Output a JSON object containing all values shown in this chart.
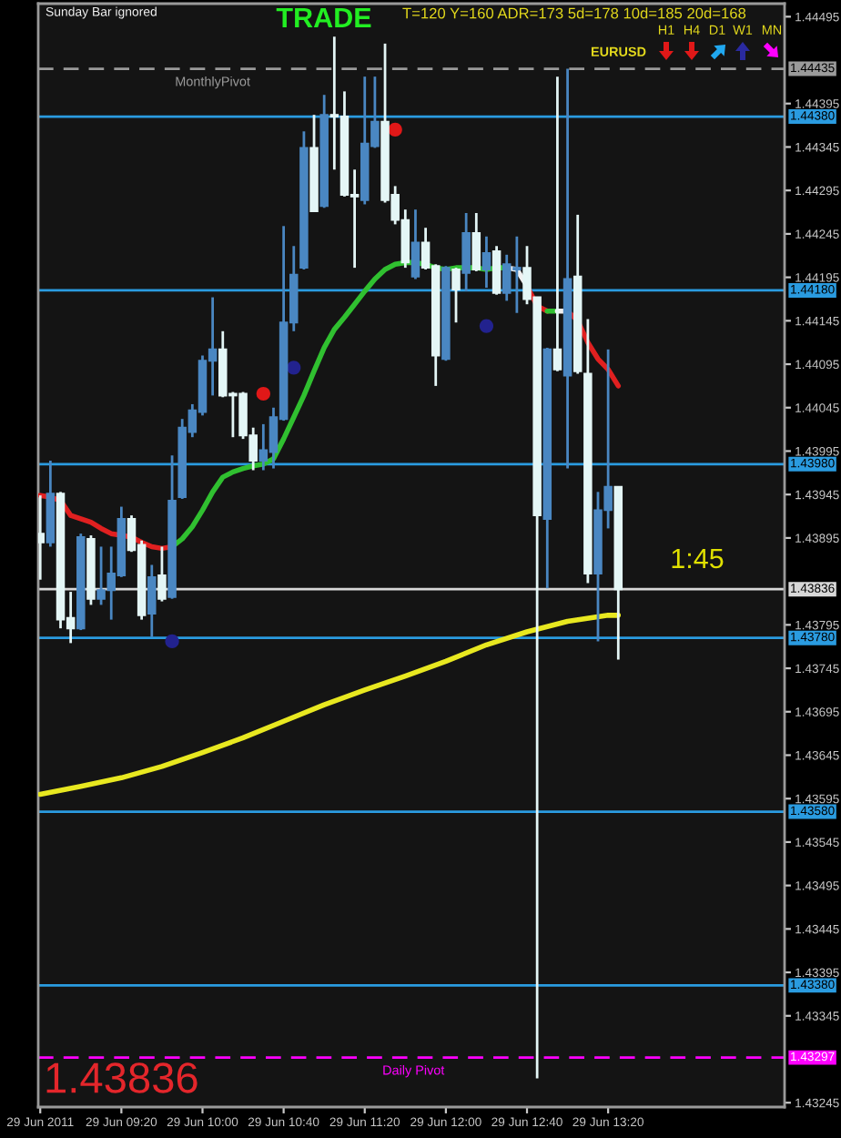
{
  "chart_data": {
    "type": "candlestick",
    "title": "TRADE",
    "x": [
      "2011-06-29T08:40",
      "2011-06-29T08:45",
      "2011-06-29T08:50",
      "2011-06-29T08:55",
      "2011-06-29T09:00",
      "2011-06-29T09:05",
      "2011-06-29T09:10",
      "2011-06-29T09:15",
      "2011-06-29T09:20",
      "2011-06-29T09:25",
      "2011-06-29T09:30",
      "2011-06-29T09:35",
      "2011-06-29T09:40",
      "2011-06-29T09:45",
      "2011-06-29T09:50",
      "2011-06-29T09:55",
      "2011-06-29T10:00",
      "2011-06-29T10:05",
      "2011-06-29T10:10",
      "2011-06-29T10:15",
      "2011-06-29T10:20",
      "2011-06-29T10:25",
      "2011-06-29T10:30",
      "2011-06-29T10:35",
      "2011-06-29T10:40",
      "2011-06-29T10:45",
      "2011-06-29T10:50",
      "2011-06-29T10:55",
      "2011-06-29T11:00",
      "2011-06-29T11:05",
      "2011-06-29T11:10",
      "2011-06-29T11:15",
      "2011-06-29T11:20",
      "2011-06-29T11:25",
      "2011-06-29T11:30",
      "2011-06-29T11:35",
      "2011-06-29T11:40",
      "2011-06-29T11:45",
      "2011-06-29T11:50",
      "2011-06-29T11:55",
      "2011-06-29T12:00",
      "2011-06-29T12:05",
      "2011-06-29T12:10",
      "2011-06-29T12:15",
      "2011-06-29T12:20",
      "2011-06-29T12:25",
      "2011-06-29T12:30",
      "2011-06-29T12:35",
      "2011-06-29T12:40",
      "2011-06-29T12:45",
      "2011-06-29T12:50",
      "2011-06-29T12:55",
      "2011-06-29T13:00",
      "2011-06-29T13:05",
      "2011-06-29T13:10",
      "2011-06-29T13:15",
      "2011-06-29T13:20",
      "2011-06-29T13:25"
    ],
    "ohlc": [
      [
        1.439,
        1.43944,
        1.43847,
        1.4389
      ],
      [
        1.4389,
        1.43984,
        1.43885,
        1.43946
      ],
      [
        1.43946,
        1.43948,
        1.43791,
        1.43801
      ],
      [
        1.43803,
        1.43833,
        1.43774,
        1.43791
      ],
      [
        1.43791,
        1.439,
        1.43789,
        1.43896
      ],
      [
        1.43894,
        1.43898,
        1.43818,
        1.43825
      ],
      [
        1.43825,
        1.43885,
        1.43818,
        1.43835
      ],
      [
        1.43835,
        1.43885,
        1.43801,
        1.43854
      ],
      [
        1.43852,
        1.43931,
        1.4385,
        1.43917
      ],
      [
        1.43917,
        1.43921,
        1.43879,
        1.43881
      ],
      [
        1.43887,
        1.43892,
        1.43801,
        1.43806
      ],
      [
        1.43808,
        1.43864,
        1.43781,
        1.4385
      ],
      [
        1.43852,
        1.43885,
        1.43822,
        1.43825
      ],
      [
        1.43827,
        1.4399,
        1.43825,
        1.43938
      ],
      [
        1.43942,
        1.44032,
        1.4394,
        1.44022
      ],
      [
        1.44017,
        1.44049,
        1.44011,
        1.44042
      ],
      [
        1.4404,
        1.44105,
        1.44036,
        1.44099
      ],
      [
        1.44099,
        1.44172,
        1.44059,
        1.44112
      ],
      [
        1.44112,
        1.44133,
        1.44057,
        1.44059
      ],
      [
        1.44061,
        1.44063,
        1.44011,
        1.44059
      ],
      [
        1.44061,
        1.44063,
        1.44009,
        1.44013
      ],
      [
        1.44013,
        1.44022,
        1.43973,
        1.43984
      ],
      [
        1.43984,
        1.44026,
        1.43973,
        1.43996
      ],
      [
        1.43994,
        1.44045,
        1.43975,
        1.44034
      ],
      [
        1.44032,
        1.44254,
        1.4403,
        1.44143
      ],
      [
        1.44143,
        1.44231,
        1.44133,
        1.44198
      ],
      [
        1.44206,
        1.44363,
        1.44204,
        1.44344
      ],
      [
        1.44344,
        1.44382,
        1.44271,
        1.44271
      ],
      [
        1.44277,
        1.44405,
        1.44275,
        1.44382
      ],
      [
        1.44382,
        1.44472,
        1.44319,
        1.4438
      ],
      [
        1.4438,
        1.44409,
        1.44288,
        1.4429
      ],
      [
        1.4429,
        1.44319,
        1.44206,
        1.44288
      ],
      [
        1.44284,
        1.44426,
        1.44279,
        1.44349
      ],
      [
        1.44346,
        1.44426,
        1.44344,
        1.44374
      ],
      [
        1.44374,
        1.44464,
        1.44281,
        1.44284
      ],
      [
        1.4429,
        1.443,
        1.44256,
        1.44261
      ],
      [
        1.44261,
        1.44273,
        1.44206,
        1.44212
      ],
      [
        1.44196,
        1.44273,
        1.44193,
        1.44235
      ],
      [
        1.44235,
        1.44252,
        1.44204,
        1.44206
      ],
      [
        1.44208,
        1.4421,
        1.4407,
        1.44105
      ],
      [
        1.44101,
        1.44208,
        1.44099,
        1.44206
      ],
      [
        1.44204,
        1.44206,
        1.44143,
        1.44181
      ],
      [
        1.442,
        1.44269,
        1.44179,
        1.44246
      ],
      [
        1.44246,
        1.44269,
        1.44202,
        1.44204
      ],
      [
        1.44204,
        1.44242,
        1.44183,
        1.44223
      ],
      [
        1.44225,
        1.44231,
        1.44175,
        1.44177
      ],
      [
        1.44177,
        1.44221,
        1.44168,
        1.4421
      ],
      [
        1.44204,
        1.44242,
        1.44154,
        1.44206
      ],
      [
        1.44206,
        1.44231,
        1.44164,
        1.4417
      ],
      [
        1.44172,
        1.44172,
        1.43273,
        1.43921
      ],
      [
        1.43917,
        1.44114,
        1.43837,
        1.44112
      ],
      [
        1.44112,
        1.44426,
        1.44087,
        1.44089
      ],
      [
        1.44082,
        1.44435,
        1.43975,
        1.44193
      ],
      [
        1.44196,
        1.44267,
        1.44084,
        1.44087
      ],
      [
        1.44084,
        1.44147,
        1.43843,
        1.43854
      ],
      [
        1.43854,
        1.43948,
        1.43776,
        1.43927
      ],
      [
        1.43927,
        1.44112,
        1.43906,
        1.43954
      ],
      [
        1.43954,
        1.43954,
        1.43755,
        1.43836
      ]
    ],
    "colors": [
      "#e4f6f6",
      "#4a87c2",
      "#e4f6f6",
      "#e4f6f6",
      "#4a87c2",
      "#e4f6f6",
      "#4a87c2",
      "#4a87c2",
      "#4a87c2",
      "#e4f6f6",
      "#e4f6f6",
      "#4a87c2",
      "#e4f6f6",
      "#4a87c2",
      "#4a87c2",
      "#4a87c2",
      "#4a87c2",
      "#4a87c2",
      "#e4f6f6",
      "#e4f6f6",
      "#e4f6f6",
      "#e4f6f6",
      "#4a87c2",
      "#4a87c2",
      "#4a87c2",
      "#4a87c2",
      "#4a87c2",
      "#e4f6f6",
      "#4a87c2",
      "#e4f6f6",
      "#e4f6f6",
      "#e4f6f6",
      "#4a87c2",
      "#4a87c2",
      "#e4f6f6",
      "#e4f6f6",
      "#e4f6f6",
      "#4a87c2",
      "#e4f6f6",
      "#e4f6f6",
      "#4a87c2",
      "#e4f6f6",
      "#4a87c2",
      "#e4f6f6",
      "#4a87c2",
      "#e4f6f6",
      "#4a87c2",
      "#4a87c2",
      "#e4f6f6",
      "#e4f6f6",
      "#4a87c2",
      "#e4f6f6",
      "#4a87c2",
      "#e4f6f6",
      "#e4f6f6",
      "#4a87c2",
      "#4a87c2",
      "#e4f6f6"
    ],
    "series": [
      {
        "type": "line",
        "color": "#e02020",
        "values": [
          1.43944,
          1.43942,
          1.43938,
          1.43921,
          1.43917,
          1.43913,
          1.43906,
          1.439,
          1.43898,
          1.43896,
          1.4389,
          1.43885,
          1.43883,
          1.43885,
          null,
          null,
          null,
          null,
          null,
          null,
          null,
          null,
          null,
          null,
          null,
          null,
          null,
          null,
          null,
          null,
          null,
          null,
          null,
          null,
          null,
          null,
          null,
          null,
          null,
          null,
          null,
          null,
          null,
          null,
          null,
          null,
          null,
          null,
          1.44185,
          1.44162,
          1.44156,
          null,
          1.44156,
          1.44145,
          1.4412,
          1.44101,
          1.44089,
          1.4407
        ]
      },
      {
        "type": "line",
        "color": "#30c030",
        "values": [
          null,
          null,
          null,
          null,
          null,
          null,
          null,
          null,
          null,
          null,
          null,
          null,
          null,
          1.43885,
          1.43894,
          1.43908,
          1.43927,
          1.43948,
          1.43965,
          1.43971,
          1.43975,
          1.43978,
          1.4398,
          1.43986,
          1.44009,
          1.44034,
          1.44059,
          1.44087,
          1.44114,
          1.44135,
          1.44149,
          1.44164,
          1.44179,
          1.44193,
          1.44204,
          1.4421,
          1.44212,
          1.44212,
          1.4421,
          1.44206,
          1.44204,
          1.44206,
          1.44206,
          1.44206,
          1.44204,
          1.44206,
          1.44206,
          null,
          null,
          null,
          1.44156,
          1.44156,
          null,
          null,
          null,
          null,
          null,
          null
        ]
      },
      {
        "type": "line",
        "color": "#f0f0f0",
        "values": [
          null,
          null,
          null,
          null,
          null,
          null,
          null,
          null,
          null,
          null,
          null,
          null,
          null,
          null,
          null,
          null,
          null,
          null,
          null,
          null,
          null,
          null,
          null,
          null,
          null,
          null,
          null,
          null,
          null,
          null,
          null,
          null,
          null,
          null,
          null,
          null,
          null,
          null,
          null,
          null,
          null,
          null,
          null,
          null,
          null,
          null,
          1.44206,
          1.44204,
          1.44185,
          null,
          null,
          1.44156,
          1.44156,
          null,
          null,
          null,
          null,
          null
        ]
      },
      {
        "type": "line",
        "color": "#e8e820",
        "x": [
          "2011-06-29T08:40",
          "2011-06-29T09:00",
          "2011-06-29T09:20",
          "2011-06-29T09:40",
          "2011-06-29T10:00",
          "2011-06-29T10:20",
          "2011-06-29T10:40",
          "2011-06-29T11:00",
          "2011-06-29T11:20",
          "2011-06-29T11:40",
          "2011-06-29T12:00",
          "2011-06-29T12:20",
          "2011-06-29T12:40",
          "2011-06-29T13:00",
          "2011-06-29T13:20",
          "2011-06-29T13:25"
        ],
        "values": [
          1.436,
          1.43609,
          1.43619,
          1.43632,
          1.43648,
          1.43665,
          1.43684,
          1.43703,
          1.4372,
          1.43736,
          1.43753,
          1.43772,
          1.43787,
          1.43799,
          1.43806,
          1.43806
        ]
      },
      {
        "type": "scatter",
        "marker": "circle",
        "color": "#e01818",
        "x": [
          "2011-06-29T10:30",
          "2011-06-29T11:35"
        ],
        "values": [
          1.44061,
          1.44365
        ]
      },
      {
        "type": "scatter",
        "marker": "circle",
        "color": "#22228e",
        "x": [
          "2011-06-29T09:45",
          "2011-06-29T10:45",
          "2011-06-29T12:20"
        ],
        "values": [
          1.43776,
          1.44091,
          1.44139
        ]
      }
    ],
    "ref_lines": [
      {
        "axis": "y",
        "value": 1.44435,
        "label": "1.44435",
        "color": "#9a9a9a",
        "line_style": "dashed"
      },
      {
        "axis": "y",
        "value": 1.4438,
        "label": "1.44380",
        "color": "#2a9be0"
      },
      {
        "axis": "y",
        "value": 1.4418,
        "label": "1.44180",
        "color": "#2a9be0"
      },
      {
        "axis": "y",
        "value": 1.4398,
        "label": "1.43980",
        "color": "#2a9be0"
      },
      {
        "axis": "y",
        "value": 1.43836,
        "label": "1.43836",
        "color": "#d8d8d8"
      },
      {
        "axis": "y",
        "value": 1.4378,
        "label": "1.43780",
        "color": "#2a9be0"
      },
      {
        "axis": "y",
        "value": 1.4358,
        "label": "1.43580",
        "color": "#2a9be0"
      },
      {
        "axis": "y",
        "value": 1.4338,
        "label": "1.43380",
        "color": "#2a9be0"
      },
      {
        "axis": "y",
        "value": 1.43297,
        "label": "1.43297",
        "color": "#ff00ff",
        "line_style": "dashed"
      }
    ],
    "annotations": [
      "Sunday Bar ignored",
      "T=120 Y=160 ADR=173 5d=178 10d=185 20d=168",
      "H1",
      "H4",
      "D1",
      "W1",
      "MN",
      "EURUSD",
      {
        "text": "MonthlyPivot",
        "x": "2011-06-29T10:05",
        "y": 1.44435
      },
      {
        "text": "Daily Pivot",
        "x": "2011-06-29T11:44",
        "y": 1.43297
      },
      "1:45",
      "1.43836"
    ],
    "xlim": [
      "2011-06-29T08:39",
      "2011-06-29T14:47"
    ],
    "xticks": [
      {
        "value": "2011-06-29T08:40",
        "label": "29 Jun 2011"
      },
      {
        "value": "2011-06-29T09:20",
        "label": "29 Jun 09:20"
      },
      {
        "value": "2011-06-29T10:00",
        "label": "29 Jun 10:00"
      },
      {
        "value": "2011-06-29T10:40",
        "label": "29 Jun 10:40"
      },
      {
        "value": "2011-06-29T11:20",
        "label": "29 Jun 11:20"
      },
      {
        "value": "2011-06-29T12:00",
        "label": "29 Jun 12:00"
      },
      {
        "value": "2011-06-29T12:40",
        "label": "29 Jun 12:40"
      },
      {
        "value": "2011-06-29T13:20",
        "label": "29 Jun 13:20"
      }
    ],
    "ylim": [
      1.4324,
      1.4451
    ],
    "yticks": [
      1.43245,
      1.43345,
      1.43395,
      1.43445,
      1.43495,
      1.43545,
      1.43595,
      1.43645,
      1.43695,
      1.43745,
      1.43795,
      1.43895,
      1.43945,
      1.43995,
      1.44045,
      1.44095,
      1.44145,
      1.44195,
      1.44245,
      1.44295,
      1.44345,
      1.44395,
      1.44495
    ]
  }
}
